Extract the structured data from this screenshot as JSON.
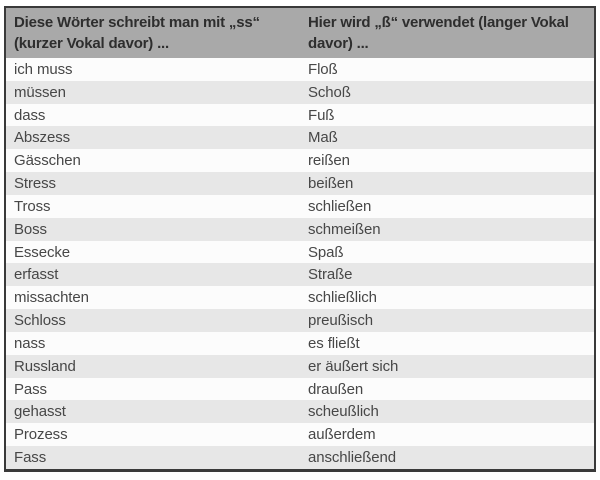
{
  "table": {
    "headers": [
      {
        "label": "Diese Wörter schreibt man mit „ss“ (kurzer Vokal davor) ..."
      },
      {
        "label": "Hier wird „ß“ verwendet (langer Vokal davor) ..."
      }
    ],
    "rows": [
      {
        "ss": "ich muss",
        "sz": "Floß"
      },
      {
        "ss": "müssen",
        "sz": "Schoß"
      },
      {
        "ss": "dass",
        "sz": "Fuß"
      },
      {
        "ss": "Abszess",
        "sz": "Maß"
      },
      {
        "ss": "Gässchen",
        "sz": "reißen"
      },
      {
        "ss": "Stress",
        "sz": "beißen"
      },
      {
        "ss": "Tross",
        "sz": "schließen"
      },
      {
        "ss": "Boss",
        "sz": "schmeißen"
      },
      {
        "ss": "Essecke",
        "sz": "Spaß"
      },
      {
        "ss": "erfasst",
        "sz": "Straße"
      },
      {
        "ss": "missachten",
        "sz": "schließlich"
      },
      {
        "ss": "Schloss",
        "sz": "preußisch"
      },
      {
        "ss": "nass",
        "sz": "es fließt"
      },
      {
        "ss": "Russland",
        "sz": "er äußert sich"
      },
      {
        "ss": "Pass",
        "sz": "draußen"
      },
      {
        "ss": "gehasst",
        "sz": "scheußlich"
      },
      {
        "ss": "Prozess",
        "sz": "außerdem"
      },
      {
        "ss": "Fass",
        "sz": "anschließend"
      }
    ],
    "colors": {
      "header_bg": "#a9a9a9",
      "header_text": "#2e2e2e",
      "row_odd_bg": "#fcfcfc",
      "row_even_bg": "#e7e7e7",
      "row_text": "#474747",
      "border": "#3a3a3a"
    }
  }
}
